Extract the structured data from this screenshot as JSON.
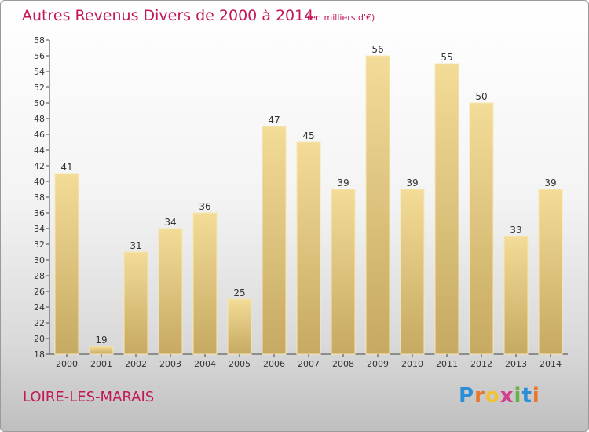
{
  "header": {
    "title": "Autres Revenus Divers de 2000 à 2014",
    "subtitle": "(en milliers d'€)"
  },
  "footer": {
    "place": "LOIRE-LES-MARAIS",
    "brand_letters": [
      "P",
      "r",
      "o",
      "x",
      "i",
      "t",
      "i"
    ],
    "brand_colors": [
      "#2a8fd6",
      "#e8772e",
      "#f1c232",
      "#d23f8e",
      "#6ab04c",
      "#2a8fd6",
      "#e8772e"
    ]
  },
  "colors": {
    "bar_light": "#f3dc97",
    "bar_dark": "#c6a962",
    "text": "#333333",
    "title": "#c2185b"
  },
  "chart_data": {
    "type": "bar",
    "categories": [
      "2000",
      "2001",
      "2002",
      "2003",
      "2004",
      "2005",
      "2006",
      "2007",
      "2008",
      "2009",
      "2010",
      "2011",
      "2012",
      "2013",
      "2014"
    ],
    "values": [
      41,
      19,
      31,
      34,
      36,
      25,
      47,
      45,
      39,
      56,
      39,
      55,
      50,
      33,
      39
    ],
    "ylim": [
      18,
      58
    ],
    "yticks": [
      18,
      20,
      22,
      24,
      26,
      28,
      30,
      32,
      34,
      36,
      38,
      40,
      42,
      44,
      46,
      48,
      50,
      52,
      54,
      56,
      58
    ],
    "grid": false,
    "data_labels": true
  }
}
